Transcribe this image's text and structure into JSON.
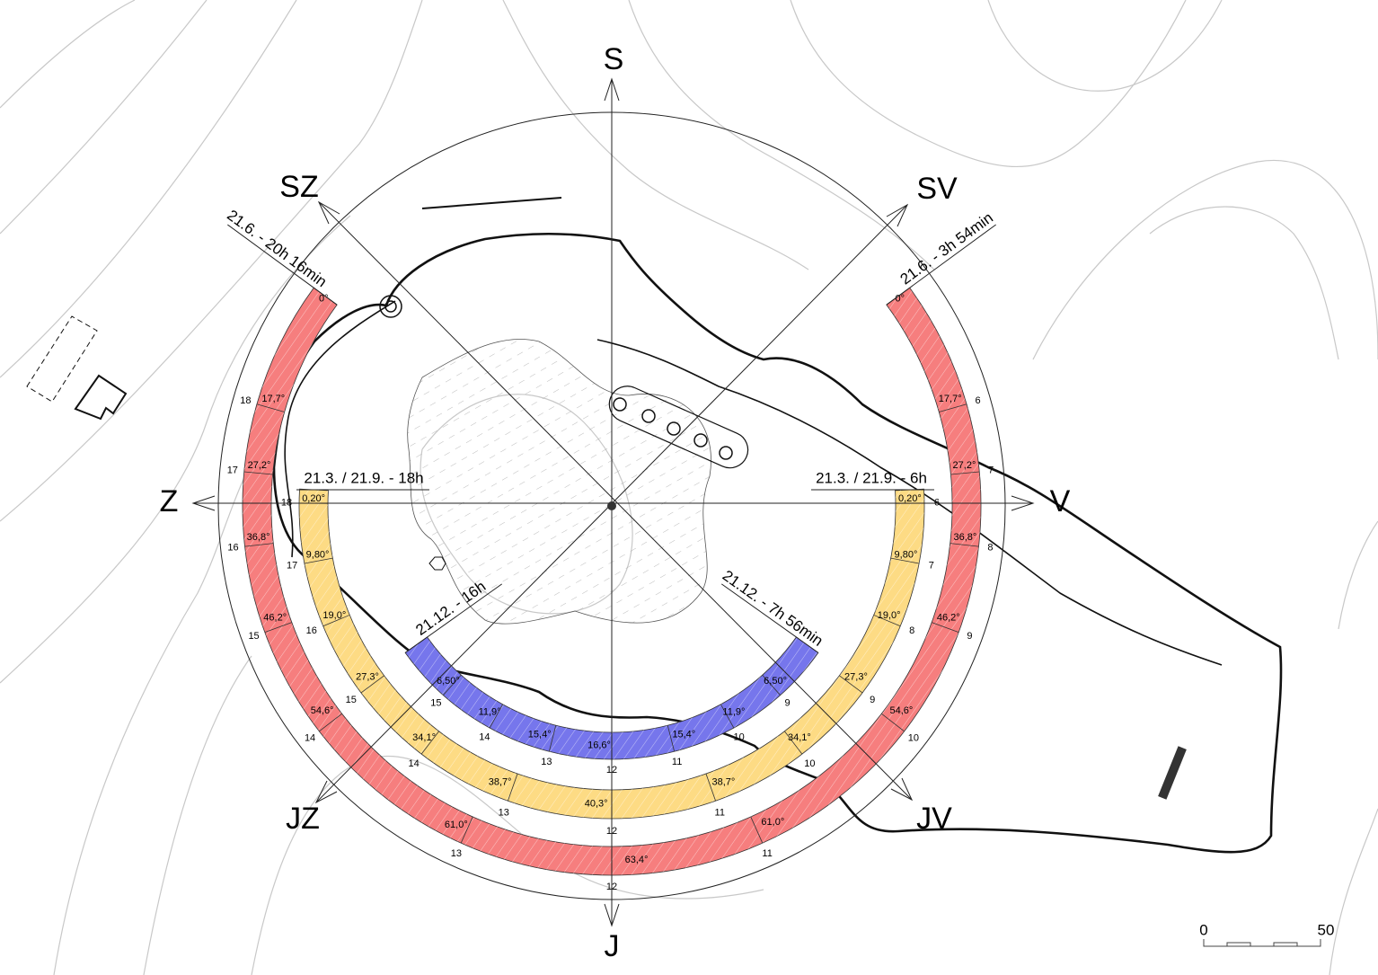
{
  "compass": {
    "north": "S",
    "northeast": "SV",
    "east": "V",
    "southeast": "JV",
    "south": "J",
    "southwest": "JZ",
    "west": "Z",
    "northwest": "SZ"
  },
  "time_labels": {
    "summer_sunset": "21.6. - 20h 16min",
    "summer_sunrise": "21.6. - 3h 54min",
    "equinox_sunset": "21.3. / 21.9. - 18h",
    "equinox_sunrise": "21.3. / 21.9. - 6h",
    "winter_sunset": "21.12. - 16h",
    "winter_sunrise": "21.12. - 7h 56min"
  },
  "sun_paths": {
    "summer": {
      "elevations": [
        "0°",
        "17,7°",
        "27,2°",
        "36,8°",
        "46,2°",
        "54,6°",
        "61,0°",
        "63,4°",
        "61,0°",
        "54,6°",
        "46,2°",
        "36,8°",
        "27,2°",
        "17,7°",
        "0°"
      ],
      "hours": [
        18,
        17,
        16,
        15,
        14,
        13,
        12,
        11,
        10,
        9,
        8,
        7,
        6
      ]
    },
    "equinox": {
      "elevations": [
        "0,20°",
        "9,80°",
        "19,0°",
        "27,3°",
        "34,1°",
        "38,7°",
        "40,3°",
        "38,7°",
        "34,1°",
        "27,3°",
        "19,0°",
        "9,80°",
        "0,20°"
      ],
      "hours": [
        18,
        17,
        16,
        15,
        14,
        13,
        12,
        11,
        10,
        9,
        8,
        7,
        6
      ]
    },
    "winter": {
      "elevations": [
        "6,50°",
        "11,9°",
        "15,4°",
        "16,6°",
        "15,4°",
        "11,9°",
        "6,50°"
      ],
      "hours": [
        15,
        14,
        13,
        12,
        11,
        10,
        9
      ]
    }
  },
  "scale": {
    "start": 0,
    "end": 50
  }
}
